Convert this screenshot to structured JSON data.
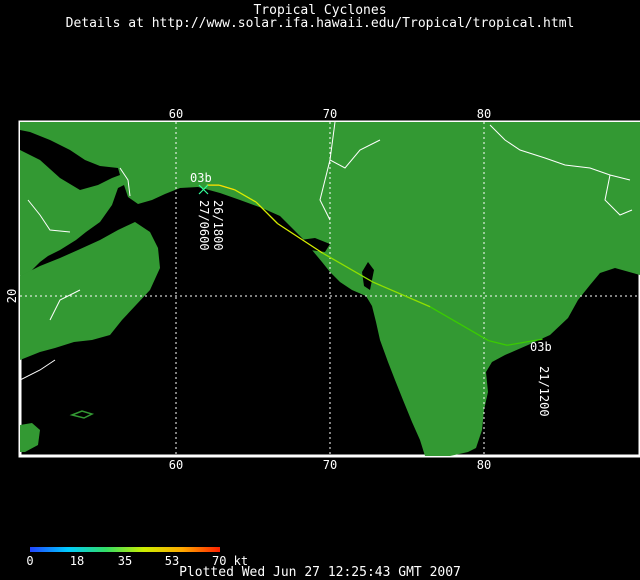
{
  "header": {
    "title": "Tropical Cyclones",
    "subtitle": "Details at http://www.solar.ifa.hawaii.edu/Tropical/tropical.html"
  },
  "map": {
    "lon_ticks_top": [
      "60",
      "70",
      "80"
    ],
    "lon_ticks_bottom": [
      "60",
      "70",
      "80"
    ],
    "lat_ticks": [
      "20"
    ],
    "colors": {
      "ocean": "#000000",
      "land": "#339933",
      "border": "#ffffff",
      "grid": "#ffffff"
    }
  },
  "storm": {
    "name_start": "03b",
    "name_end": "03b",
    "label_start_a": "26/1800",
    "label_start_b": "27/0600",
    "label_end": "21/1200",
    "track": [
      {
        "lon": 83.8,
        "lat": 17.2
      },
      {
        "lon": 81.5,
        "lat": 16.8
      },
      {
        "lon": 80.3,
        "lat": 17.1
      },
      {
        "lon": 76.5,
        "lat": 19.3
      },
      {
        "lon": 72.8,
        "lat": 20.9
      },
      {
        "lon": 69.5,
        "lat": 22.8
      },
      {
        "lon": 66.6,
        "lat": 24.7
      },
      {
        "lon": 65.2,
        "lat": 26.1
      },
      {
        "lon": 63.8,
        "lat": 26.9
      },
      {
        "lon": 62.8,
        "lat": 27.2
      },
      {
        "lon": 62.0,
        "lat": 27.2
      }
    ],
    "track_colors": [
      "#3acc00",
      "#8fe000",
      "#d8ee00",
      "#ffe000"
    ]
  },
  "legend": {
    "labels": [
      "0",
      "18",
      "35",
      "53",
      "70 kt"
    ]
  },
  "footer": {
    "plotted": "Plotted Wed Jun 27 12:25:43 GMT 2007"
  }
}
